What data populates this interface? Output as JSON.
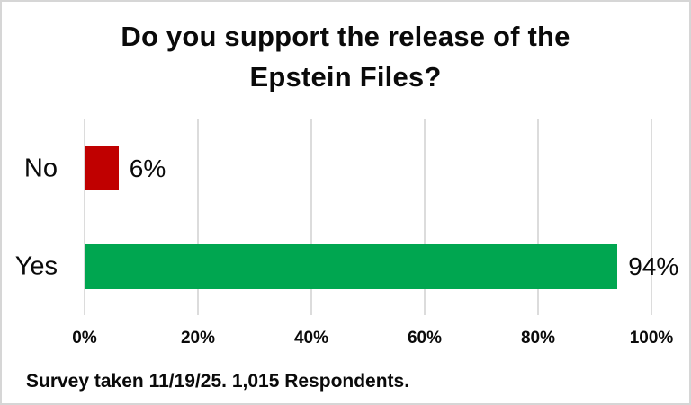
{
  "chart_data": {
    "type": "bar",
    "orientation": "horizontal",
    "title": "Do you support the release of the Epstein Files?",
    "title_lines": [
      "Do you support the release of the",
      "Epstein Files?"
    ],
    "categories": [
      "No",
      "Yes"
    ],
    "values": [
      6,
      94
    ],
    "value_labels": [
      "6%",
      "94%"
    ],
    "bar_colors": [
      "#c00000",
      "#00a650"
    ],
    "xlabel": "",
    "ylabel": "",
    "xlim": [
      0,
      100
    ],
    "x_tick_values": [
      0,
      20,
      40,
      60,
      80,
      100
    ],
    "x_tick_labels": [
      "0%",
      "20%",
      "40%",
      "60%",
      "80%",
      "100%"
    ],
    "grid": "vertical-only",
    "legend": "none",
    "footnote": "Survey taken 11/19/25. 1,015 Respondents."
  },
  "colors": {
    "background": "#ffffff",
    "canvas_border": "#d6d6d6",
    "gridline": "#dcdcdc",
    "text": "#0a0a0a",
    "bar_no": "#c00000",
    "bar_yes": "#00a650"
  }
}
